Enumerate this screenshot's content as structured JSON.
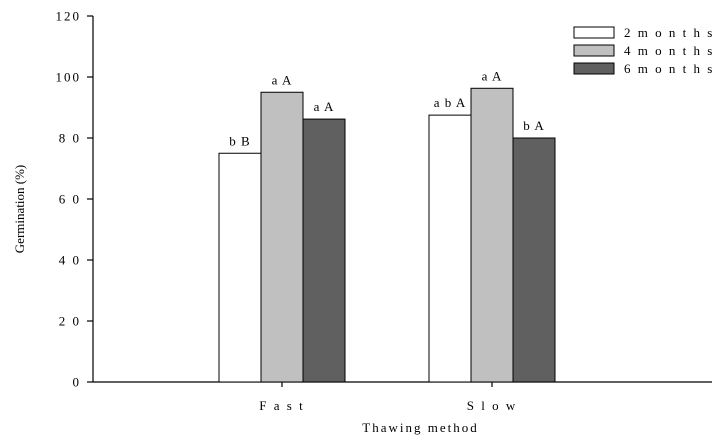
{
  "chart_data": {
    "type": "bar",
    "title": "",
    "xlabel": "Thawing method",
    "ylabel": "Germination (%)",
    "ylim": [
      0,
      120
    ],
    "yticks": [
      0,
      20,
      40,
      60,
      80,
      100,
      120
    ],
    "ytick_labels": [
      "0",
      "2 0",
      "4 0",
      "6 0",
      "8 0",
      "100",
      "120"
    ],
    "categories": [
      "Fast",
      "Slow"
    ],
    "category_labels": [
      "F a s t",
      "S l o w"
    ],
    "grid": false,
    "legend_position": "top-right",
    "series": [
      {
        "name": "2 months",
        "legend_label": "2 m o n t h s",
        "color": "#ffffff",
        "values": [
          75,
          87.5
        ],
        "labels": [
          "b B",
          "a b A"
        ]
      },
      {
        "name": "4 months",
        "legend_label": "4 m o n t h s",
        "color": "#c0c0c0",
        "values": [
          95,
          96.3
        ],
        "labels": [
          "a A",
          "a A"
        ]
      },
      {
        "name": "6 months",
        "legend_label": "6 m o n t h s",
        "color": "#606060",
        "values": [
          86.2,
          80
        ],
        "labels": [
          "a A",
          "b A"
        ]
      }
    ]
  }
}
